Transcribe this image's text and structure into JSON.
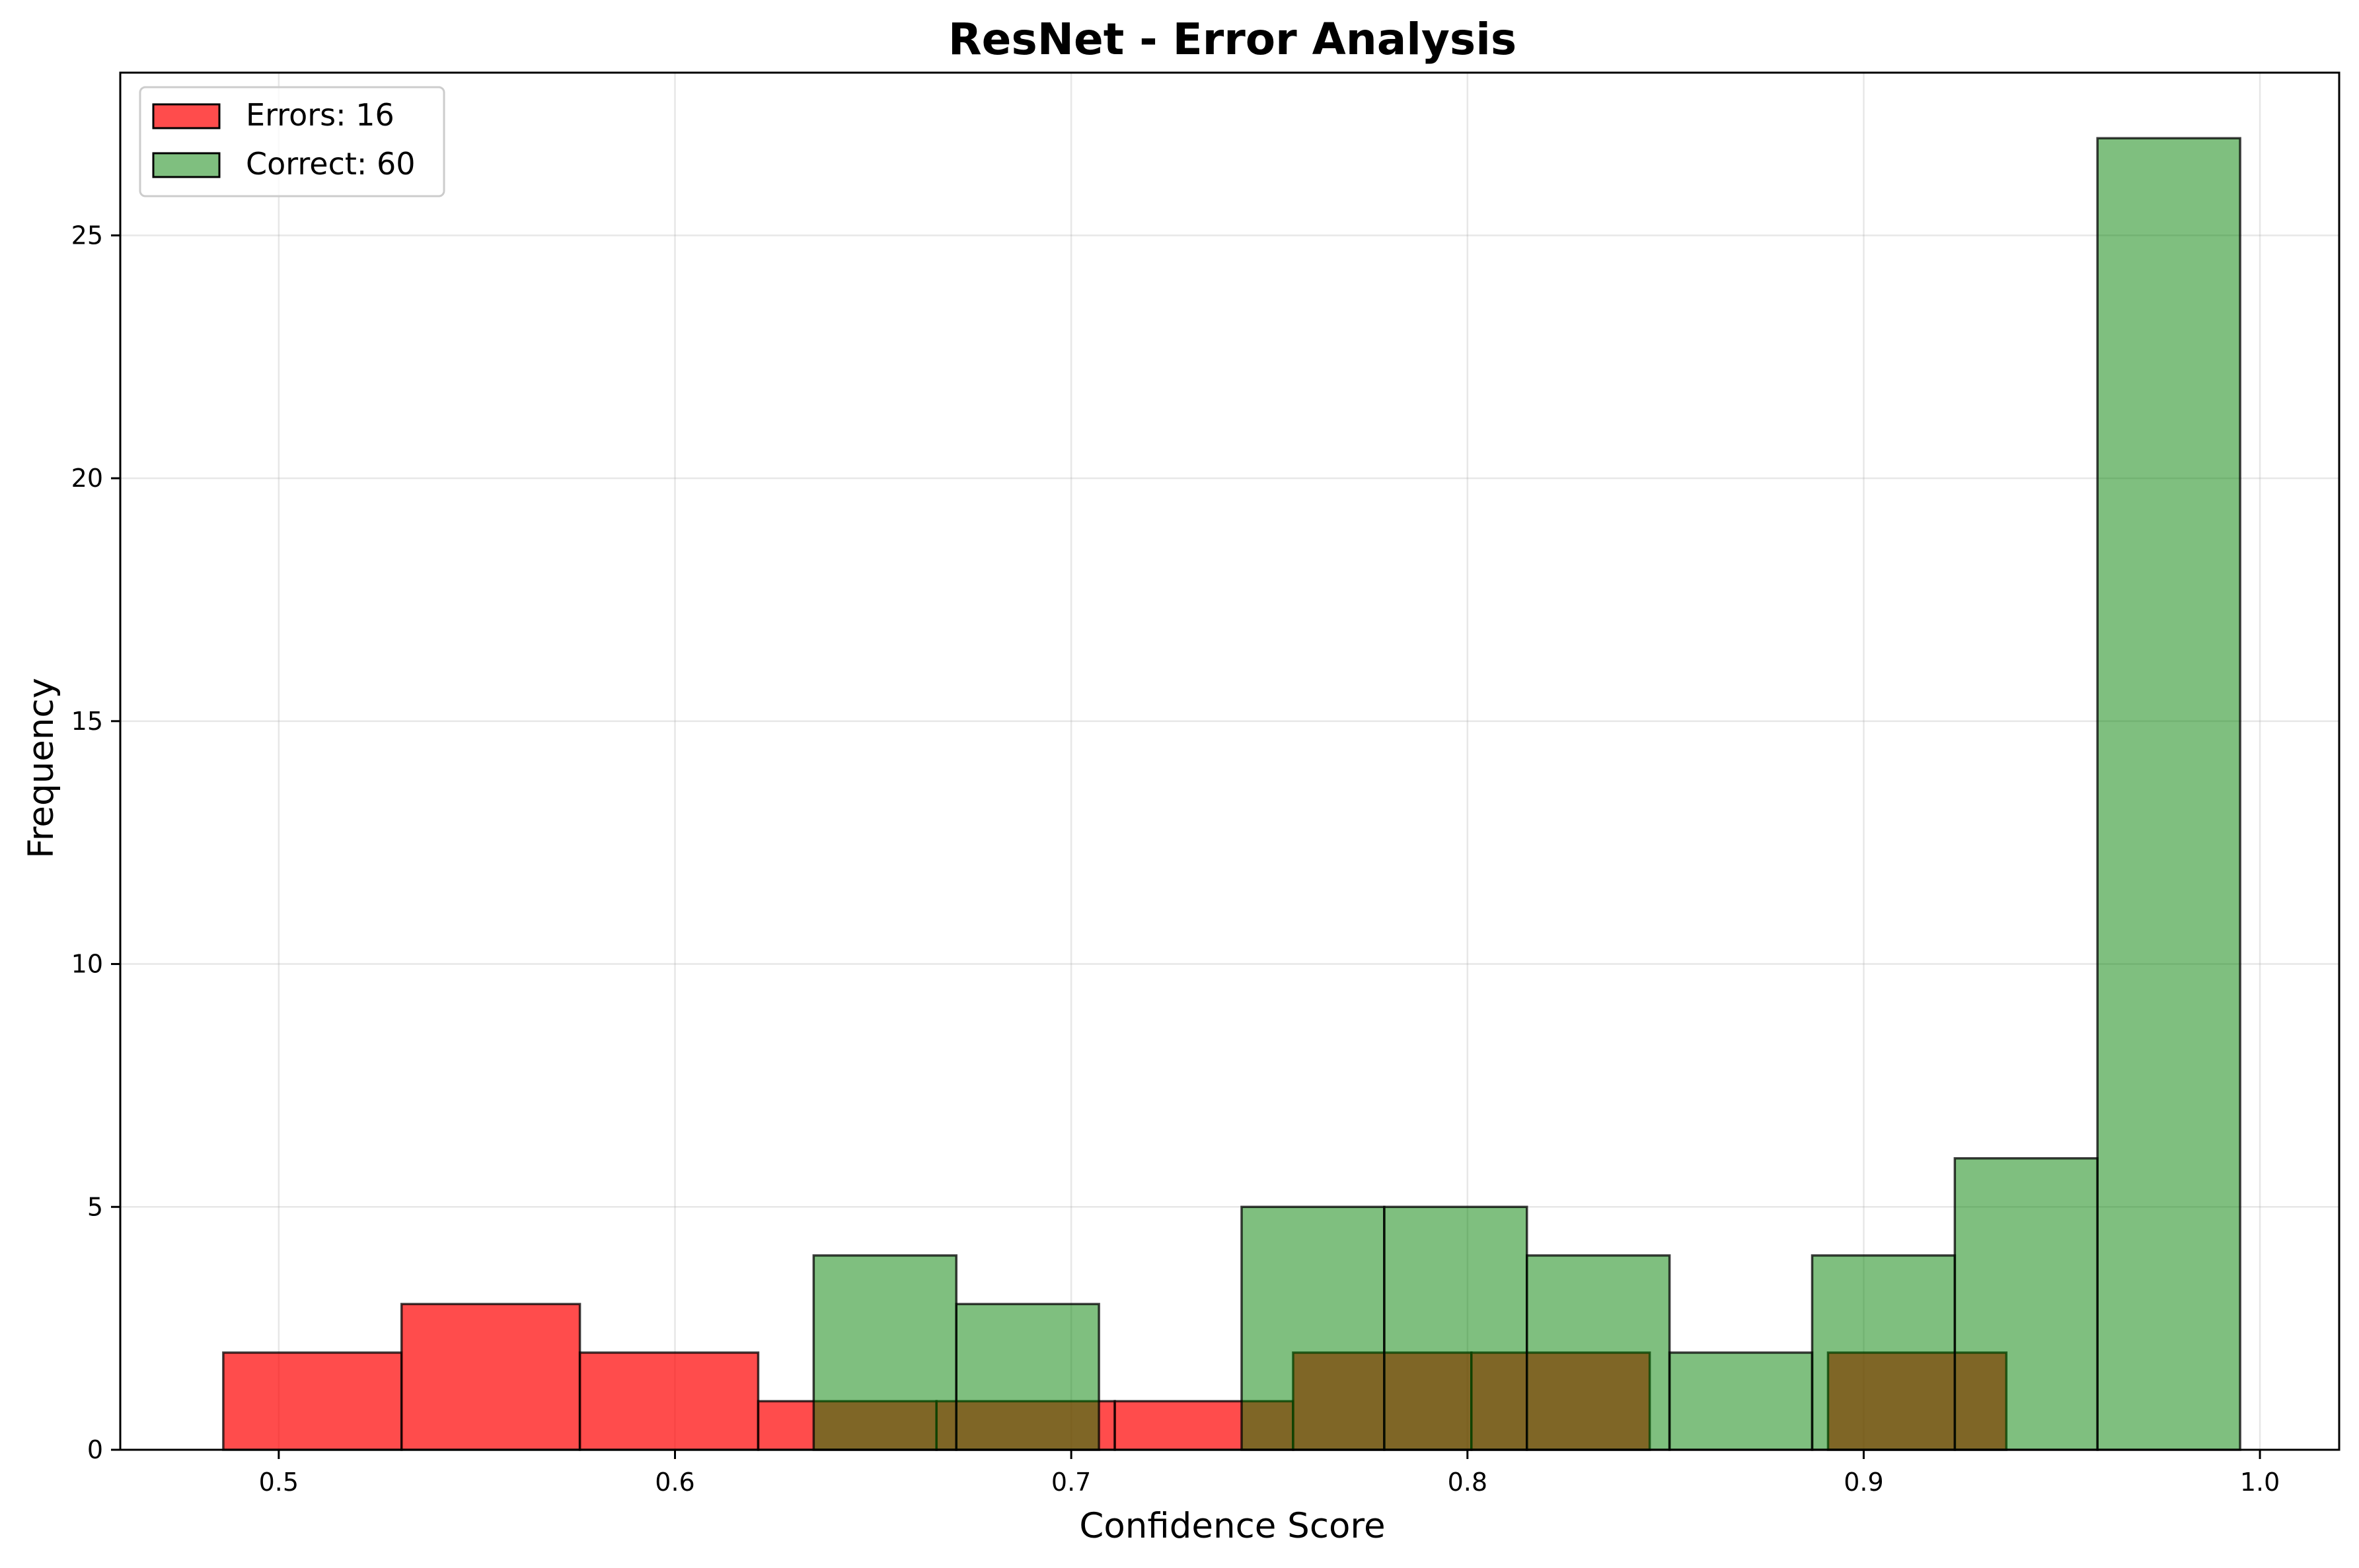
{
  "chart_data": {
    "type": "histogram",
    "title": "ResNet - Error Analysis",
    "xlabel": "Confidence Score",
    "ylabel": "Frequency",
    "xlim": [
      0.46,
      1.02
    ],
    "ylim": [
      0,
      28.35
    ],
    "xticks": [
      0.5,
      0.6,
      0.7,
      0.8,
      0.9,
      1.0
    ],
    "xtick_labels": [
      "0.5",
      "0.6",
      "0.7",
      "0.8",
      "0.9",
      "1.0"
    ],
    "yticks": [
      0,
      5,
      10,
      15,
      20,
      25
    ],
    "ytick_labels": [
      "0",
      "5",
      "10",
      "15",
      "20",
      "25"
    ],
    "grid": true,
    "legend_position": "top-left",
    "series": [
      {
        "name": "Errors: 16",
        "color": "#ff0000",
        "alpha": 0.7,
        "bins": [
          {
            "x0": 0.486,
            "x1": 0.531,
            "count": 2
          },
          {
            "x0": 0.531,
            "x1": 0.576,
            "count": 3
          },
          {
            "x0": 0.576,
            "x1": 0.621,
            "count": 2
          },
          {
            "x0": 0.621,
            "x1": 0.666,
            "count": 1
          },
          {
            "x0": 0.666,
            "x1": 0.711,
            "count": 1
          },
          {
            "x0": 0.711,
            "x1": 0.756,
            "count": 1
          },
          {
            "x0": 0.756,
            "x1": 0.801,
            "count": 2
          },
          {
            "x0": 0.801,
            "x1": 0.846,
            "count": 2
          },
          {
            "x0": 0.846,
            "x1": 0.891,
            "count": 0
          },
          {
            "x0": 0.891,
            "x1": 0.936,
            "count": 2
          }
        ]
      },
      {
        "name": "Correct: 60",
        "color": "#008000",
        "alpha": 0.5,
        "bins": [
          {
            "x0": 0.635,
            "x1": 0.671,
            "count": 4
          },
          {
            "x0": 0.671,
            "x1": 0.707,
            "count": 3
          },
          {
            "x0": 0.707,
            "x1": 0.743,
            "count": 0
          },
          {
            "x0": 0.743,
            "x1": 0.779,
            "count": 5
          },
          {
            "x0": 0.779,
            "x1": 0.815,
            "count": 5
          },
          {
            "x0": 0.815,
            "x1": 0.851,
            "count": 4
          },
          {
            "x0": 0.851,
            "x1": 0.887,
            "count": 2
          },
          {
            "x0": 0.887,
            "x1": 0.923,
            "count": 4
          },
          {
            "x0": 0.923,
            "x1": 0.959,
            "count": 6
          },
          {
            "x0": 0.959,
            "x1": 0.995,
            "count": 27
          }
        ]
      }
    ]
  }
}
